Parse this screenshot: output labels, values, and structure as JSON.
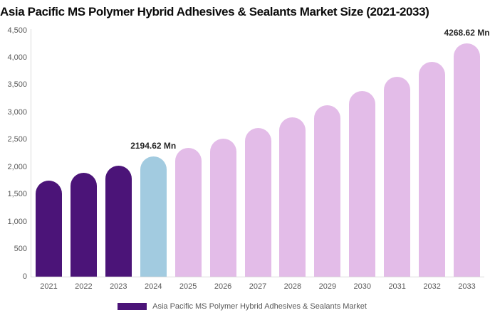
{
  "chart_data": {
    "type": "bar",
    "title": "Asia Pacific MS Polymer Hybrid Adhesives & Sealants Market Size (2021-2033)",
    "series_name": "Asia Pacific MS Polymer Hybrid Adhesives & Sealants Market",
    "categories": [
      "2021",
      "2022",
      "2023",
      "2024",
      "2025",
      "2026",
      "2027",
      "2028",
      "2029",
      "2030",
      "2031",
      "2032",
      "2033"
    ],
    "values": [
      1760,
      1900,
      2030,
      2194.62,
      2355,
      2525,
      2720,
      2915,
      3135,
      3395,
      3655,
      3930,
      4268.62
    ],
    "unit": "Mn",
    "xlabel": "",
    "ylabel": "",
    "ylim": [
      0,
      4500
    ],
    "grid": "off",
    "legend_position": "bottom",
    "y_ticks": [
      {
        "value": 0,
        "label": "0"
      },
      {
        "value": 500,
        "label": "500"
      },
      {
        "value": 1000,
        "label": "1,000"
      },
      {
        "value": 1500,
        "label": "1,500"
      },
      {
        "value": 2000,
        "label": "2,000"
      },
      {
        "value": 2500,
        "label": "2,500"
      },
      {
        "value": 3000,
        "label": "3,000"
      },
      {
        "value": 3500,
        "label": "3,500"
      },
      {
        "value": 4000,
        "label": "4,000"
      },
      {
        "value": 4500,
        "label": "4,500"
      }
    ],
    "colors": [
      "#4B1478",
      "#4B1478",
      "#4B1478",
      "#A2CBE0",
      "#E3BCE8",
      "#E3BCE8",
      "#E3BCE8",
      "#E3BCE8",
      "#E3BCE8",
      "#E3BCE8",
      "#E3BCE8",
      "#E3BCE8",
      "#E3BCE8"
    ],
    "color_roles": {
      "historical": "#4B1478",
      "current_year": "#A2CBE0",
      "forecast": "#E3BCE8"
    },
    "annotations": [
      {
        "category": "2024",
        "text": "2194.62 Mn"
      },
      {
        "category": "2033",
        "text": "4268.62 Mn"
      }
    ]
  },
  "legend": {
    "label": "Asia Pacific MS Polymer Hybrid Adhesives & Sealants Market",
    "swatch_color": "#4B1478"
  },
  "axes_colors": {
    "axis_line": "#d9d9d9",
    "tick_label": "#595959"
  }
}
